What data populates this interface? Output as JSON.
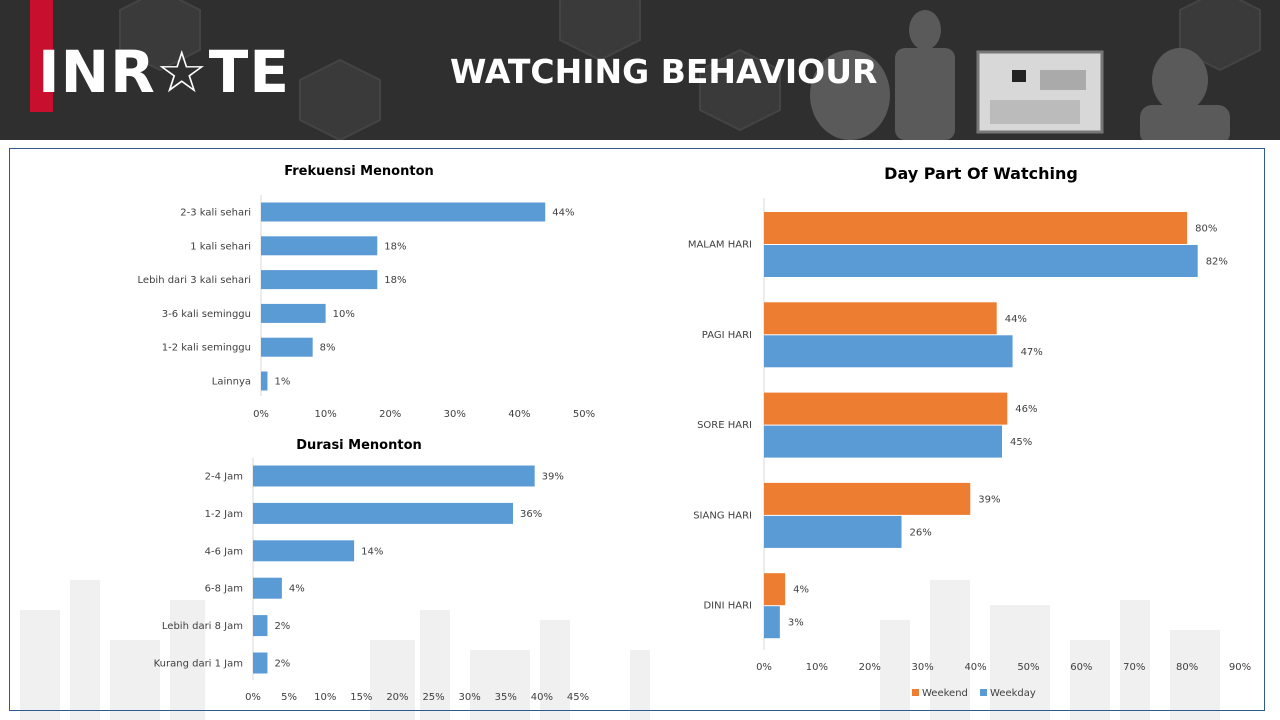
{
  "header": {
    "logo_text": "INR☆TE",
    "title": "WATCHING BEHAVIOUR"
  },
  "colors": {
    "blue": "#5b9bd5",
    "orange": "#ed7d31",
    "header_bg": "#2f2f2f",
    "logo_red": "#c8102e",
    "frame_border": "#2e5a94"
  },
  "chart_data": [
    {
      "type": "bar",
      "orientation": "horizontal",
      "title": "Frekuensi Menonton",
      "categories": [
        "2-3 kali sehari",
        "1 kali sehari",
        "Lebih dari 3 kali sehari",
        "3-6 kali seminggu",
        "1-2 kali seminggu",
        "Lainnya"
      ],
      "values": [
        44,
        18,
        18,
        10,
        8,
        1
      ],
      "labels": [
        "44%",
        "18%",
        "18%",
        "10%",
        "8%",
        "1%"
      ],
      "xlim": [
        0,
        50
      ],
      "xticks": [
        "0%",
        "10%",
        "20%",
        "30%",
        "40%",
        "50%"
      ],
      "grid": false
    },
    {
      "type": "bar",
      "orientation": "horizontal",
      "title": "Durasi Menonton",
      "categories": [
        "2-4 Jam",
        "1-2 Jam",
        "4-6 Jam",
        "6-8 Jam",
        "Lebih dari 8 Jam",
        "Kurang dari 1 Jam"
      ],
      "values": [
        39,
        36,
        14,
        4,
        2,
        2
      ],
      "labels": [
        "39%",
        "36%",
        "14%",
        "4%",
        "2%",
        "2%"
      ],
      "xlim": [
        0,
        45
      ],
      "xticks": [
        "0%",
        "5%",
        "10%",
        "15%",
        "20%",
        "25%",
        "30%",
        "35%",
        "40%",
        "45%"
      ],
      "grid": false
    },
    {
      "type": "bar",
      "orientation": "horizontal",
      "title": "Day Part Of Watching",
      "categories": [
        "MALAM HARI",
        "PAGI HARI",
        "SORE HARI",
        "SIANG HARI",
        "DINI HARI"
      ],
      "series": [
        {
          "name": "Weekend",
          "values": [
            80,
            44,
            46,
            39,
            4
          ],
          "labels": [
            "80%",
            "44%",
            "46%",
            "39%",
            "4%"
          ],
          "color": "#ed7d31"
        },
        {
          "name": "Weekday",
          "values": [
            82,
            47,
            45,
            26,
            3
          ],
          "labels": [
            "82%",
            "47%",
            "45%",
            "26%",
            "3%"
          ],
          "color": "#5b9bd5"
        }
      ],
      "xlim": [
        0,
        90
      ],
      "xticks": [
        "0%",
        "10%",
        "20%",
        "30%",
        "40%",
        "50%",
        "60%",
        "70%",
        "80%",
        "90%"
      ],
      "legend": "bottom",
      "grid": false
    }
  ]
}
